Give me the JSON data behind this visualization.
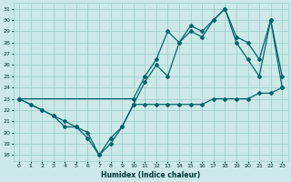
{
  "xlabel": "Humidex (Indice chaleur)",
  "xlim": [
    -0.5,
    23.5
  ],
  "ylim": [
    17.5,
    31.5
  ],
  "yticks": [
    18,
    19,
    20,
    21,
    22,
    23,
    24,
    25,
    26,
    27,
    28,
    29,
    30,
    31
  ],
  "xticks": [
    0,
    1,
    2,
    3,
    4,
    5,
    6,
    7,
    8,
    9,
    10,
    11,
    12,
    13,
    14,
    15,
    16,
    17,
    18,
    19,
    20,
    21,
    22,
    23
  ],
  "bg_color": "#cce8e8",
  "grid_color": "#99cccc",
  "line_color": "#006666",
  "line1_x": [
    0,
    1,
    2,
    3,
    4,
    5,
    6,
    7,
    8,
    9,
    10,
    11,
    12,
    13,
    14,
    15,
    16,
    17,
    18,
    19,
    20,
    21,
    22,
    23
  ],
  "line1_y": [
    23,
    22.5,
    22,
    21.5,
    20.5,
    20.5,
    19.5,
    18,
    19,
    20.5,
    22.5,
    22.5,
    22.5,
    22.5,
    22.5,
    22.5,
    22.5,
    23,
    23,
    23,
    23,
    23.5,
    23.5,
    24
  ],
  "line2_x": [
    0,
    2,
    3,
    4,
    5,
    6,
    7,
    8,
    9,
    10,
    11,
    12,
    13,
    14,
    15,
    16,
    17,
    18,
    19,
    20,
    21,
    22,
    23
  ],
  "line2_y": [
    23,
    22,
    21.5,
    21,
    20.5,
    20,
    18,
    19.5,
    20.5,
    22.5,
    24.5,
    26,
    25,
    28,
    29,
    28.5,
    30,
    31,
    28,
    26.5,
    25,
    30,
    24
  ],
  "line3_x": [
    0,
    10,
    11,
    12,
    13,
    14,
    15,
    16,
    17,
    18,
    19,
    20,
    21,
    22,
    23
  ],
  "line3_y": [
    23,
    23,
    25,
    26.5,
    29,
    28,
    29.5,
    29,
    30,
    31,
    28.5,
    28,
    26.5,
    30,
    25
  ]
}
